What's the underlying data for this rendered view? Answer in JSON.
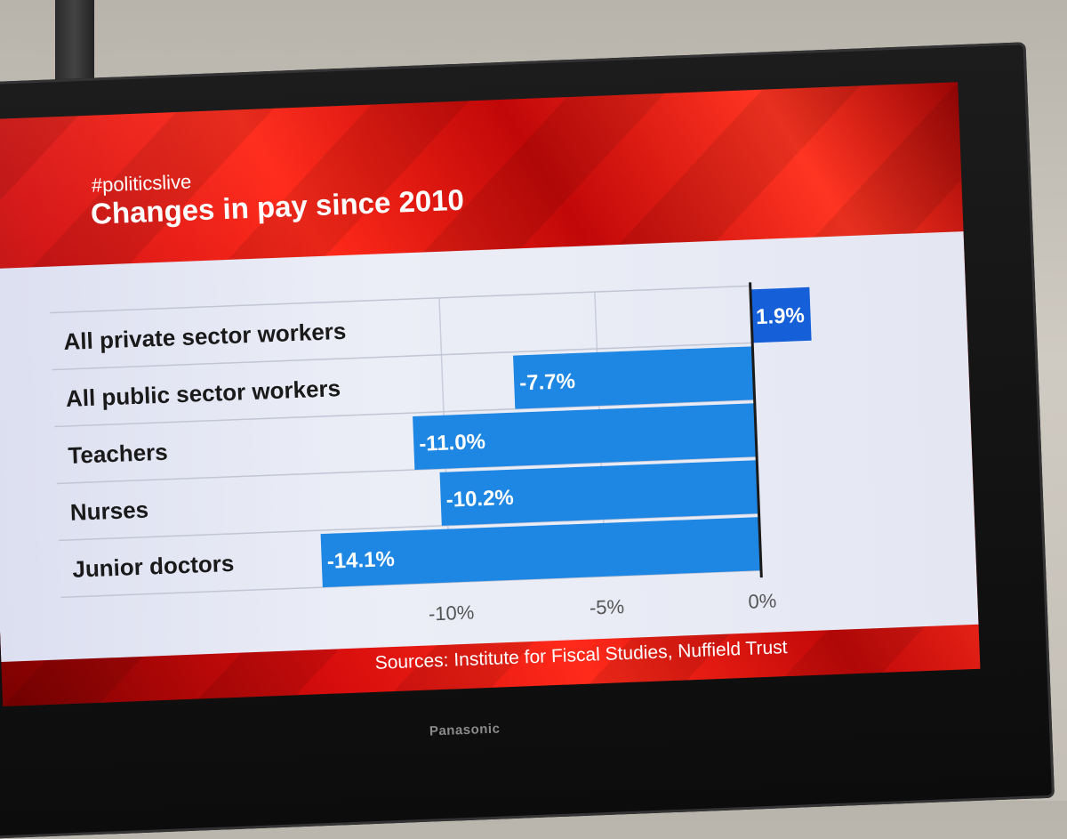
{
  "screen": {
    "hashtag": "#politicslive",
    "sources": "Sources:  Institute for Fiscal Studies, Nuffield Trust"
  },
  "tv": {
    "brand": "Panasonic"
  },
  "colors": {
    "bar": "#1e86e3",
    "bar_positive": "#1560d9",
    "accent_red": "#e01010"
  },
  "chart_data": {
    "type": "bar",
    "orientation": "horizontal",
    "title": "Changes in pay since 2010",
    "categories": [
      "All private sector workers",
      "All public sector workers",
      "Teachers",
      "Nurses",
      "Junior doctors"
    ],
    "values": [
      1.9,
      -7.7,
      -11.0,
      -10.2,
      -14.1
    ],
    "value_labels": [
      "1.9%",
      "-7.7%",
      "-11.0%",
      "-10.2%",
      "-14.1%"
    ],
    "xlim": [
      -15,
      2
    ],
    "xticks": [
      -10,
      -5,
      0
    ],
    "xtick_labels": [
      "-10%",
      "-5%",
      "0%"
    ],
    "grid": true,
    "legend": "none"
  }
}
